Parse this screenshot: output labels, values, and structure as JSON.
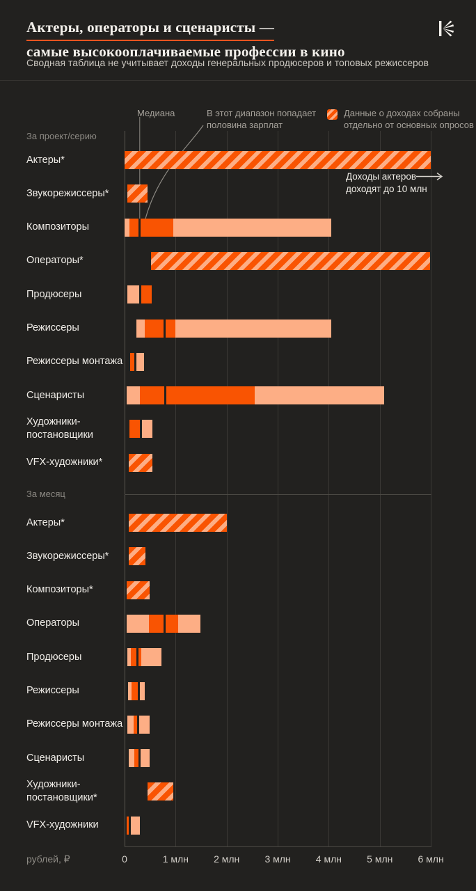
{
  "header": {
    "title_line1": "Актеры, операторы и сценаристы —",
    "title_line2": "самые высокооплачиваемые профессии в кино",
    "subtitle": "Сводная таблица не учитывает доходы генеральных продюсеров и топовых режиссеров"
  },
  "legend": {
    "median": "Медиана",
    "iqr_note": [
      "В этот диапазон попадает",
      "половина зарплат"
    ],
    "separate_note": [
      "Данные о доходах собраны",
      "отдельно от основных опросов"
    ]
  },
  "actors_note": [
    "Доходы актеров",
    "доходят до 10 млн"
  ],
  "axis": {
    "unit": "рублей, ₽",
    "ticks": [
      "0",
      "1 млн",
      "2 млн",
      "3 млн",
      "4 млн",
      "5 млн",
      "6 млн"
    ],
    "tick_values": [
      0,
      1,
      2,
      3,
      4,
      5,
      6
    ]
  },
  "colors": {
    "background": "#22211F",
    "bright_orange": "#F95402",
    "pale_orange": "#FDAE85",
    "accent_underline": "#EE5420"
  },
  "chart_data": {
    "type": "bar",
    "orientation": "horizontal-range",
    "title": "Актеры, операторы и сценаристы — самые высокооплачиваемые профессии в кино",
    "xlabel": "рублей, ₽",
    "xlim": [
      0,
      6.05
    ],
    "x_ticks_mln": [
      0,
      1,
      2,
      3,
      4,
      5,
      6
    ],
    "grid": true,
    "encoding": {
      "iqr": "в этот диапазон попадает половина зарплат",
      "median_dark_line": "медиана",
      "striped": "данные о доходах собраны отдельно от основных опросов",
      "unit": "млн рублей"
    },
    "sections": [
      {
        "label": "За проект/серию",
        "rows": [
          {
            "label_lines": [
              "Актеры*"
            ],
            "segments": [
              [
                "separate",
                0,
                6.0
              ]
            ],
            "median": null,
            "note": "доходы до 10 млн"
          },
          {
            "label_lines": [
              "Звукорежиссеры*"
            ],
            "segments": [
              [
                "separate",
                0.05,
                0.45
              ]
            ],
            "median": null
          },
          {
            "label_lines": [
              "Композиторы"
            ],
            "segments": [
              [
                "range",
                0,
                0.1
              ],
              [
                "iqr",
                0.1,
                0.95
              ],
              [
                "range",
                0.95,
                4.05
              ]
            ],
            "median": 0.29
          },
          {
            "label_lines": [
              "Операторы*"
            ],
            "segments": [
              [
                "separate",
                0.52,
                5.98
              ]
            ],
            "median": null
          },
          {
            "label_lines": [
              "Продюсеры"
            ],
            "segments": [
              [
                "range",
                0.06,
                0.31
              ],
              [
                "iqr",
                0.31,
                0.53
              ]
            ],
            "median": 0.31
          },
          {
            "label_lines": [
              "Режиссеры"
            ],
            "segments": [
              [
                "range",
                0.23,
                0.4
              ],
              [
                "iqr",
                0.4,
                1.0
              ],
              [
                "range",
                1.0,
                4.05
              ]
            ],
            "median": 0.78
          },
          {
            "label_lines": [
              "Режиссеры монтажа"
            ],
            "segments": [
              [
                "iqr",
                0.11,
                0.21
              ],
              [
                "range",
                0.21,
                0.38
              ]
            ],
            "median": 0.21
          },
          {
            "label_lines": [
              "Сценаристы"
            ],
            "segments": [
              [
                "range",
                0.04,
                0.3
              ],
              [
                "iqr",
                0.3,
                2.55
              ],
              [
                "range",
                2.55,
                5.08
              ]
            ],
            "median": 0.8
          },
          {
            "label_lines": [
              "Художники-",
              "постановщики"
            ],
            "segments": [
              [
                "iqr",
                0.1,
                0.32
              ],
              [
                "range",
                0.32,
                0.55
              ]
            ],
            "median": 0.32
          },
          {
            "label_lines": [
              "VFX-художники*"
            ],
            "segments": [
              [
                "separate",
                0.08,
                0.55
              ]
            ],
            "median": null
          }
        ]
      },
      {
        "label": "За месяц",
        "rows": [
          {
            "label_lines": [
              "Актеры*"
            ],
            "segments": [
              [
                "separate",
                0.08,
                2.0
              ]
            ],
            "median": null
          },
          {
            "label_lines": [
              "Звукорежиссеры*"
            ],
            "segments": [
              [
                "separate",
                0.08,
                0.41
              ]
            ],
            "median": null
          },
          {
            "label_lines": [
              "Композиторы*"
            ],
            "segments": [
              [
                "separate",
                0.04,
                0.49
              ]
            ],
            "median": null
          },
          {
            "label_lines": [
              "Операторы"
            ],
            "segments": [
              [
                "range",
                0.04,
                0.48
              ],
              [
                "iqr",
                0.48,
                1.05
              ],
              [
                "range",
                1.05,
                1.49
              ]
            ],
            "median": 0.79
          },
          {
            "label_lines": [
              "Продюсеры"
            ],
            "segments": [
              [
                "range",
                0.05,
                0.12
              ],
              [
                "iqr",
                0.12,
                0.33
              ],
              [
                "range",
                0.33,
                0.72
              ]
            ],
            "median": 0.25
          },
          {
            "label_lines": [
              "Режиссеры"
            ],
            "segments": [
              [
                "range",
                0.07,
                0.14
              ],
              [
                "iqr",
                0.14,
                0.28
              ],
              [
                "range",
                0.28,
                0.4
              ]
            ],
            "median": 0.28
          },
          {
            "label_lines": [
              "Режиссеры монтажа"
            ],
            "segments": [
              [
                "range",
                0.05,
                0.18
              ],
              [
                "iqr",
                0.18,
                0.27
              ],
              [
                "range",
                0.27,
                0.49
              ]
            ],
            "median": 0.27
          },
          {
            "label_lines": [
              "Сценаристы"
            ],
            "segments": [
              [
                "range",
                0.08,
                0.19
              ],
              [
                "iqr",
                0.19,
                0.29
              ],
              [
                "range",
                0.29,
                0.49
              ]
            ],
            "median": 0.29
          },
          {
            "label_lines": [
              "Художники-",
              "постановщики*"
            ],
            "segments": [
              [
                "separate",
                0.45,
                0.95
              ]
            ],
            "median": null
          },
          {
            "label_lines": [
              "VFX-художники"
            ],
            "segments": [
              [
                "iqr",
                0.04,
                0.1
              ],
              [
                "range",
                0.1,
                0.3
              ]
            ],
            "median": 0.1
          }
        ]
      }
    ]
  }
}
